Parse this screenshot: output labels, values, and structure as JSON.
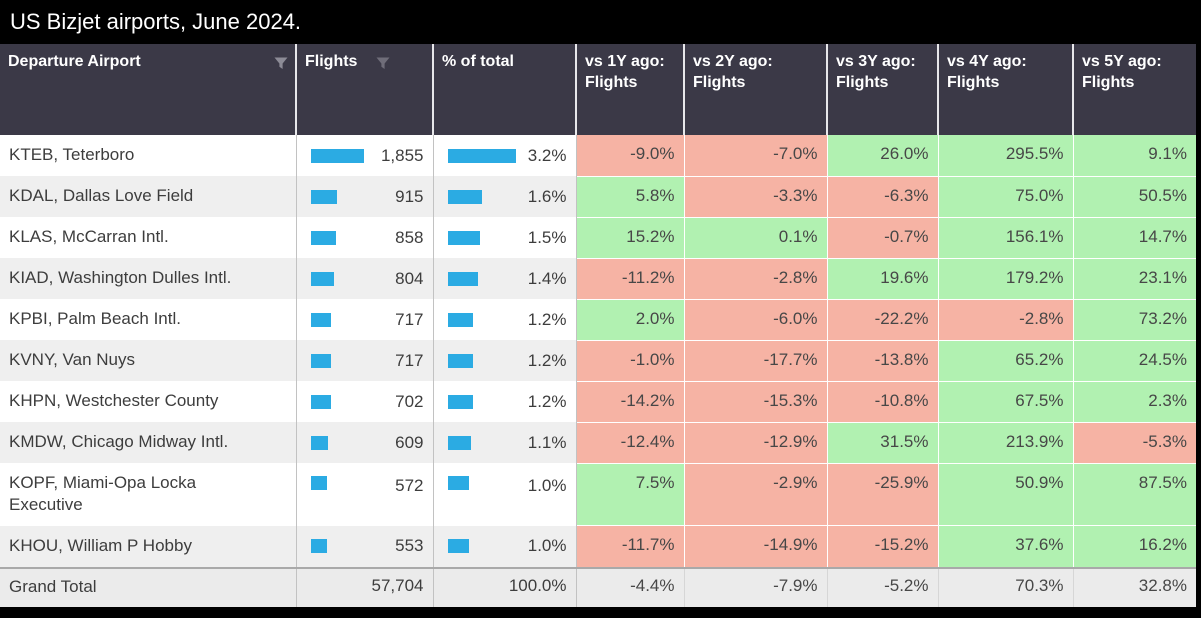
{
  "title": "US Bizjet airports, June 2024.",
  "colors": {
    "title_bar_bg": "#000000",
    "header_bg": "#3b3947",
    "data_bar": "#2babe3",
    "positive_bg": "#b1f1b1",
    "negative_bg": "#f6b3a4",
    "row_alt_bg": "#efefef",
    "grand_total_bg": "#ebebeb"
  },
  "chart_data": {
    "type": "table",
    "title": "US Bizjet airports, June 2024.",
    "columns": [
      {
        "label": "Departure Airport",
        "filter_icon": "funnel-filter-icon"
      },
      {
        "label": "Flights",
        "filter_icon": "funnel-filter-icon"
      },
      {
        "label": "% of total"
      },
      {
        "label": "vs 1Y ago: Flights"
      },
      {
        "label": "vs 2Y ago: Flights"
      },
      {
        "label": "vs 3Y ago: Flights"
      },
      {
        "label": "vs 4Y ago: Flights"
      },
      {
        "label": "vs 5Y ago: Flights"
      }
    ],
    "conditional_formatting": "vs columns: positive values green, negative values pink; Flights and % of total have blue data bars proportional to value",
    "rows": [
      {
        "name": "KTEB, Teterboro",
        "flights": 1855,
        "flights_label": "1,855",
        "pct": 3.2,
        "pct_label": "3.2%",
        "vs": [
          "-9.0%",
          "-7.0%",
          "26.0%",
          "295.5%",
          "9.1%"
        ]
      },
      {
        "name": "KDAL, Dallas Love Field",
        "flights": 915,
        "flights_label": "915",
        "pct": 1.6,
        "pct_label": "1.6%",
        "vs": [
          "5.8%",
          "-3.3%",
          "-6.3%",
          "75.0%",
          "50.5%"
        ]
      },
      {
        "name": "KLAS, McCarran Intl.",
        "flights": 858,
        "flights_label": "858",
        "pct": 1.5,
        "pct_label": "1.5%",
        "vs": [
          "15.2%",
          "0.1%",
          "-0.7%",
          "156.1%",
          "14.7%"
        ]
      },
      {
        "name": "KIAD, Washington Dulles Intl.",
        "flights": 804,
        "flights_label": "804",
        "pct": 1.4,
        "pct_label": "1.4%",
        "vs": [
          "-11.2%",
          "-2.8%",
          "19.6%",
          "179.2%",
          "23.1%"
        ]
      },
      {
        "name": "KPBI, Palm Beach Intl.",
        "flights": 717,
        "flights_label": "717",
        "pct": 1.2,
        "pct_label": "1.2%",
        "vs": [
          "2.0%",
          "-6.0%",
          "-22.2%",
          "-2.8%",
          "73.2%"
        ]
      },
      {
        "name": "KVNY, Van Nuys",
        "flights": 717,
        "flights_label": "717",
        "pct": 1.2,
        "pct_label": "1.2%",
        "vs": [
          "-1.0%",
          "-17.7%",
          "-13.8%",
          "65.2%",
          "24.5%"
        ]
      },
      {
        "name": "KHPN, Westchester County",
        "flights": 702,
        "flights_label": "702",
        "pct": 1.2,
        "pct_label": "1.2%",
        "vs": [
          "-14.2%",
          "-15.3%",
          "-10.8%",
          "67.5%",
          "2.3%"
        ]
      },
      {
        "name": "KMDW, Chicago Midway Intl.",
        "flights": 609,
        "flights_label": "609",
        "pct": 1.1,
        "pct_label": "1.1%",
        "vs": [
          "-12.4%",
          "-12.9%",
          "31.5%",
          "213.9%",
          "-5.3%"
        ]
      },
      {
        "name": "KOPF, Miami-Opa Locka Executive",
        "flights": 572,
        "flights_label": "572",
        "pct": 1.0,
        "pct_label": "1.0%",
        "vs": [
          "7.5%",
          "-2.9%",
          "-25.9%",
          "50.9%",
          "87.5%"
        ]
      },
      {
        "name": "KHOU, William P Hobby",
        "flights": 553,
        "flights_label": "553",
        "pct": 1.0,
        "pct_label": "1.0%",
        "vs": [
          "-11.7%",
          "-14.9%",
          "-15.2%",
          "37.6%",
          "16.2%"
        ]
      }
    ],
    "grand_total": {
      "name": "Grand Total",
      "flights_label": "57,704",
      "pct_label": "100.0%",
      "vs": [
        "-4.4%",
        "-7.9%",
        "-5.2%",
        "70.3%",
        "32.8%"
      ]
    }
  }
}
